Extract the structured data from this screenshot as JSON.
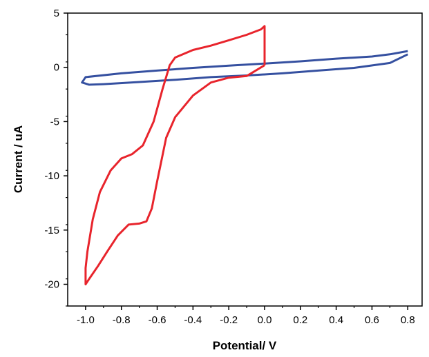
{
  "chart_data": {
    "type": "line",
    "title": "",
    "xlabel": "Potential/ V",
    "ylabel": "Current / uA",
    "xlim": [
      -1.1,
      0.88
    ],
    "ylim": [
      -22,
      5
    ],
    "x_ticks": [
      -1.0,
      -0.8,
      -0.6,
      -0.4,
      -0.2,
      0.0,
      0.2,
      0.4,
      0.6,
      0.8
    ],
    "x_tick_labels": [
      "-1.0",
      "-0.8",
      "-0.6",
      "-0.4",
      "-0.2",
      "0.0",
      "0.2",
      "0.4",
      "0.6",
      "0.8"
    ],
    "y_ticks": [
      5,
      0,
      -5,
      -10,
      -15,
      -20
    ],
    "y_tick_labels": [
      "5",
      "0",
      "-5",
      "-10",
      "-15",
      "-20"
    ],
    "grid": false,
    "legend": "none",
    "series": [
      {
        "color": "#3550a0",
        "points": [
          [
            0.8,
            1.5
          ],
          [
            0.7,
            1.2
          ],
          [
            0.6,
            1.0
          ],
          [
            0.4,
            0.8
          ],
          [
            0.2,
            0.55
          ],
          [
            0.0,
            0.35
          ],
          [
            -0.2,
            0.15
          ],
          [
            -0.4,
            -0.05
          ],
          [
            -0.6,
            -0.3
          ],
          [
            -0.8,
            -0.55
          ],
          [
            -1.0,
            -0.9
          ],
          [
            -1.02,
            -1.4
          ],
          [
            -0.98,
            -1.6
          ],
          [
            -0.9,
            -1.55
          ],
          [
            -0.7,
            -1.35
          ],
          [
            -0.5,
            -1.15
          ],
          [
            -0.3,
            -0.9
          ],
          [
            -0.1,
            -0.75
          ],
          [
            0.1,
            -0.55
          ],
          [
            0.3,
            -0.3
          ],
          [
            0.5,
            -0.05
          ],
          [
            0.7,
            0.4
          ],
          [
            0.8,
            1.2
          ]
        ]
      },
      {
        "color": "#e8242c",
        "points": [
          [
            0.0,
            0.2
          ],
          [
            -0.1,
            -0.8
          ],
          [
            -0.2,
            -0.95
          ],
          [
            -0.3,
            -1.4
          ],
          [
            -0.4,
            -2.6
          ],
          [
            -0.5,
            -4.6
          ],
          [
            -0.55,
            -6.5
          ],
          [
            -0.6,
            -10.5
          ],
          [
            -0.63,
            -13.0
          ],
          [
            -0.66,
            -14.2
          ],
          [
            -0.7,
            -14.4
          ],
          [
            -0.76,
            -14.5
          ],
          [
            -0.82,
            -15.5
          ],
          [
            -0.88,
            -17.0
          ],
          [
            -0.93,
            -18.3
          ],
          [
            -0.98,
            -19.5
          ],
          [
            -1.0,
            -20.0
          ],
          [
            -1.0,
            -18.5
          ],
          [
            -0.99,
            -17.0
          ],
          [
            -0.96,
            -14.0
          ],
          [
            -0.92,
            -11.5
          ],
          [
            -0.86,
            -9.5
          ],
          [
            -0.8,
            -8.4
          ],
          [
            -0.74,
            -8.0
          ],
          [
            -0.68,
            -7.2
          ],
          [
            -0.62,
            -5.0
          ],
          [
            -0.57,
            -2.0
          ],
          [
            -0.53,
            0.2
          ],
          [
            -0.5,
            0.9
          ],
          [
            -0.4,
            1.6
          ],
          [
            -0.3,
            2.0
          ],
          [
            -0.2,
            2.5
          ],
          [
            -0.1,
            3.0
          ],
          [
            -0.02,
            3.5
          ],
          [
            0.0,
            3.8
          ],
          [
            0.0,
            0.2
          ]
        ]
      }
    ]
  }
}
